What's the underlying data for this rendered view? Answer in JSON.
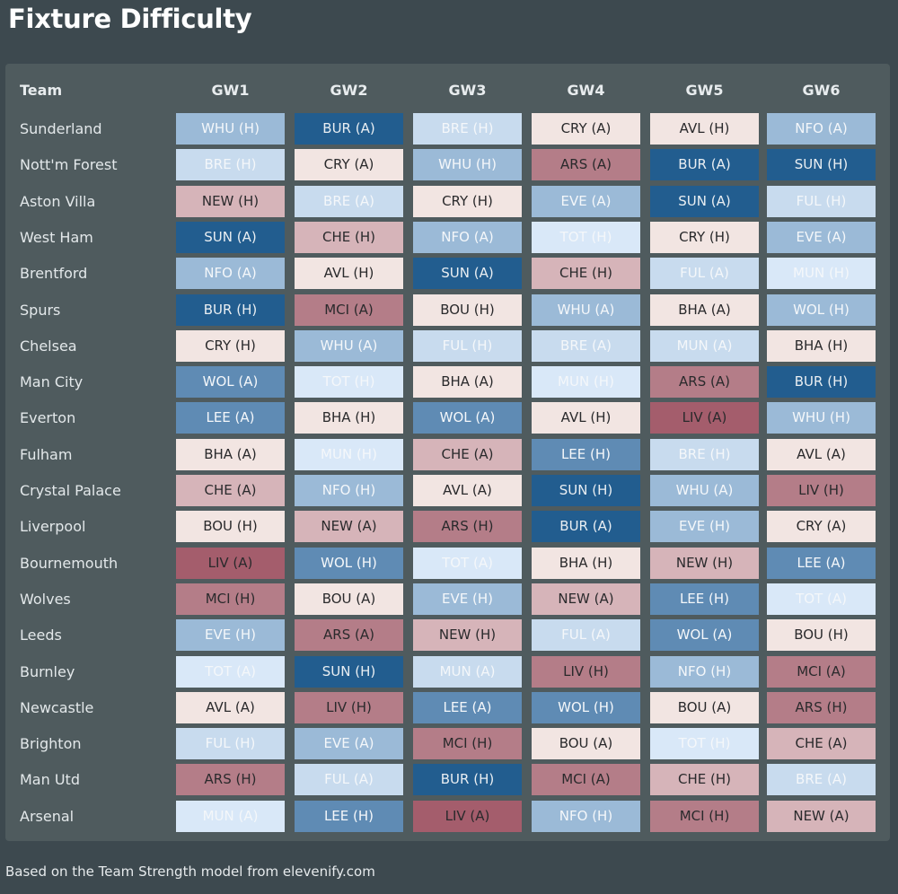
{
  "title": "Fixture Difficulty",
  "header": {
    "team_label": "Team",
    "gameweeks": [
      "GW1",
      "GW2",
      "GW3",
      "GW4",
      "GW5",
      "GW6"
    ]
  },
  "footer": "Based on the Team Strength model from elevenify.com",
  "difficulty_colors": {
    "1": "#225d8f",
    "2": "#5f8bb4",
    "3": "#9bbad7",
    "4": "#c8dbee",
    "5": "#d9e8f8",
    "6": "#f2e5e2",
    "7": "#d6b4b9",
    "8": "#b47d88",
    "9": "#a45d6c"
  },
  "rows": [
    {
      "team": "Sunderland",
      "fixtures": [
        {
          "text": "WHU (H)",
          "level": 3
        },
        {
          "text": "BUR (A)",
          "level": 1
        },
        {
          "text": "BRE (H)",
          "level": 4
        },
        {
          "text": "CRY (A)",
          "level": 6
        },
        {
          "text": "AVL (H)",
          "level": 6
        },
        {
          "text": "NFO (A)",
          "level": 3
        }
      ]
    },
    {
      "team": "Nott'm Forest",
      "fixtures": [
        {
          "text": "BRE (H)",
          "level": 4
        },
        {
          "text": "CRY (A)",
          "level": 6
        },
        {
          "text": "WHU (H)",
          "level": 3
        },
        {
          "text": "ARS (A)",
          "level": 8
        },
        {
          "text": "BUR (A)",
          "level": 1
        },
        {
          "text": "SUN (H)",
          "level": 1
        }
      ]
    },
    {
      "team": "Aston Villa",
      "fixtures": [
        {
          "text": "NEW (H)",
          "level": 7
        },
        {
          "text": "BRE (A)",
          "level": 4
        },
        {
          "text": "CRY (H)",
          "level": 6
        },
        {
          "text": "EVE (A)",
          "level": 3
        },
        {
          "text": "SUN (A)",
          "level": 1
        },
        {
          "text": "FUL (H)",
          "level": 4
        }
      ]
    },
    {
      "team": "West Ham",
      "fixtures": [
        {
          "text": "SUN (A)",
          "level": 1
        },
        {
          "text": "CHE (H)",
          "level": 7
        },
        {
          "text": "NFO (A)",
          "level": 3
        },
        {
          "text": "TOT (H)",
          "level": 5
        },
        {
          "text": "CRY (H)",
          "level": 6
        },
        {
          "text": "EVE (A)",
          "level": 3
        }
      ]
    },
    {
      "team": "Brentford",
      "fixtures": [
        {
          "text": "NFO (A)",
          "level": 3
        },
        {
          "text": "AVL (H)",
          "level": 6
        },
        {
          "text": "SUN (A)",
          "level": 1
        },
        {
          "text": "CHE (H)",
          "level": 7
        },
        {
          "text": "FUL (A)",
          "level": 4
        },
        {
          "text": "MUN (H)",
          "level": 5
        }
      ]
    },
    {
      "team": "Spurs",
      "fixtures": [
        {
          "text": "BUR (H)",
          "level": 1
        },
        {
          "text": "MCI (A)",
          "level": 8
        },
        {
          "text": "BOU (H)",
          "level": 6
        },
        {
          "text": "WHU (A)",
          "level": 3
        },
        {
          "text": "BHA (A)",
          "level": 6
        },
        {
          "text": "WOL (H)",
          "level": 3
        }
      ]
    },
    {
      "team": "Chelsea",
      "fixtures": [
        {
          "text": "CRY (H)",
          "level": 6
        },
        {
          "text": "WHU (A)",
          "level": 3
        },
        {
          "text": "FUL (H)",
          "level": 4
        },
        {
          "text": "BRE (A)",
          "level": 4
        },
        {
          "text": "MUN (A)",
          "level": 4
        },
        {
          "text": "BHA (H)",
          "level": 6
        }
      ]
    },
    {
      "team": "Man City",
      "fixtures": [
        {
          "text": "WOL (A)",
          "level": 2
        },
        {
          "text": "TOT (H)",
          "level": 5
        },
        {
          "text": "BHA (A)",
          "level": 6
        },
        {
          "text": "MUN (H)",
          "level": 5
        },
        {
          "text": "ARS (A)",
          "level": 8
        },
        {
          "text": "BUR (H)",
          "level": 1
        }
      ]
    },
    {
      "team": "Everton",
      "fixtures": [
        {
          "text": "LEE (A)",
          "level": 2
        },
        {
          "text": "BHA (H)",
          "level": 6
        },
        {
          "text": "WOL (A)",
          "level": 2
        },
        {
          "text": "AVL (H)",
          "level": 6
        },
        {
          "text": "LIV (A)",
          "level": 9
        },
        {
          "text": "WHU (H)",
          "level": 3
        }
      ]
    },
    {
      "team": "Fulham",
      "fixtures": [
        {
          "text": "BHA (A)",
          "level": 6
        },
        {
          "text": "MUN (H)",
          "level": 5
        },
        {
          "text": "CHE (A)",
          "level": 7
        },
        {
          "text": "LEE (H)",
          "level": 2
        },
        {
          "text": "BRE (H)",
          "level": 4
        },
        {
          "text": "AVL (A)",
          "level": 6
        }
      ]
    },
    {
      "team": "Crystal Palace",
      "fixtures": [
        {
          "text": "CHE (A)",
          "level": 7
        },
        {
          "text": "NFO (H)",
          "level": 3
        },
        {
          "text": "AVL (A)",
          "level": 6
        },
        {
          "text": "SUN (H)",
          "level": 1
        },
        {
          "text": "WHU (A)",
          "level": 3
        },
        {
          "text": "LIV (H)",
          "level": 8
        }
      ]
    },
    {
      "team": "Liverpool",
      "fixtures": [
        {
          "text": "BOU (H)",
          "level": 6
        },
        {
          "text": "NEW (A)",
          "level": 7
        },
        {
          "text": "ARS (H)",
          "level": 8
        },
        {
          "text": "BUR (A)",
          "level": 1
        },
        {
          "text": "EVE (H)",
          "level": 3
        },
        {
          "text": "CRY (A)",
          "level": 6
        }
      ]
    },
    {
      "team": "Bournemouth",
      "fixtures": [
        {
          "text": "LIV (A)",
          "level": 9
        },
        {
          "text": "WOL (H)",
          "level": 2
        },
        {
          "text": "TOT (A)",
          "level": 5
        },
        {
          "text": "BHA (H)",
          "level": 6
        },
        {
          "text": "NEW (H)",
          "level": 7
        },
        {
          "text": "LEE (A)",
          "level": 2
        }
      ]
    },
    {
      "team": "Wolves",
      "fixtures": [
        {
          "text": "MCI (H)",
          "level": 8
        },
        {
          "text": "BOU (A)",
          "level": 6
        },
        {
          "text": "EVE (H)",
          "level": 3
        },
        {
          "text": "NEW (A)",
          "level": 7
        },
        {
          "text": "LEE (H)",
          "level": 2
        },
        {
          "text": "TOT (A)",
          "level": 5
        }
      ]
    },
    {
      "team": "Leeds",
      "fixtures": [
        {
          "text": "EVE (H)",
          "level": 3
        },
        {
          "text": "ARS (A)",
          "level": 8
        },
        {
          "text": "NEW (H)",
          "level": 7
        },
        {
          "text": "FUL (A)",
          "level": 4
        },
        {
          "text": "WOL (A)",
          "level": 2
        },
        {
          "text": "BOU (H)",
          "level": 6
        }
      ]
    },
    {
      "team": "Burnley",
      "fixtures": [
        {
          "text": "TOT (A)",
          "level": 5
        },
        {
          "text": "SUN (H)",
          "level": 1
        },
        {
          "text": "MUN (A)",
          "level": 4
        },
        {
          "text": "LIV (H)",
          "level": 8
        },
        {
          "text": "NFO (H)",
          "level": 3
        },
        {
          "text": "MCI (A)",
          "level": 8
        }
      ]
    },
    {
      "team": "Newcastle",
      "fixtures": [
        {
          "text": "AVL (A)",
          "level": 6
        },
        {
          "text": "LIV (H)",
          "level": 8
        },
        {
          "text": "LEE (A)",
          "level": 2
        },
        {
          "text": "WOL (H)",
          "level": 2
        },
        {
          "text": "BOU (A)",
          "level": 6
        },
        {
          "text": "ARS (H)",
          "level": 8
        }
      ]
    },
    {
      "team": "Brighton",
      "fixtures": [
        {
          "text": "FUL (H)",
          "level": 4
        },
        {
          "text": "EVE (A)",
          "level": 3
        },
        {
          "text": "MCI (H)",
          "level": 8
        },
        {
          "text": "BOU (A)",
          "level": 6
        },
        {
          "text": "TOT (H)",
          "level": 5
        },
        {
          "text": "CHE (A)",
          "level": 7
        }
      ]
    },
    {
      "team": "Man Utd",
      "fixtures": [
        {
          "text": "ARS (H)",
          "level": 8
        },
        {
          "text": "FUL (A)",
          "level": 4
        },
        {
          "text": "BUR (H)",
          "level": 1
        },
        {
          "text": "MCI (A)",
          "level": 8
        },
        {
          "text": "CHE (H)",
          "level": 7
        },
        {
          "text": "BRE (A)",
          "level": 4
        }
      ]
    },
    {
      "team": "Arsenal",
      "fixtures": [
        {
          "text": "MUN (A)",
          "level": 5
        },
        {
          "text": "LEE (H)",
          "level": 2
        },
        {
          "text": "LIV (A)",
          "level": 9
        },
        {
          "text": "NFO (H)",
          "level": 3
        },
        {
          "text": "MCI (H)",
          "level": 8
        },
        {
          "text": "NEW (A)",
          "level": 7
        }
      ]
    }
  ]
}
